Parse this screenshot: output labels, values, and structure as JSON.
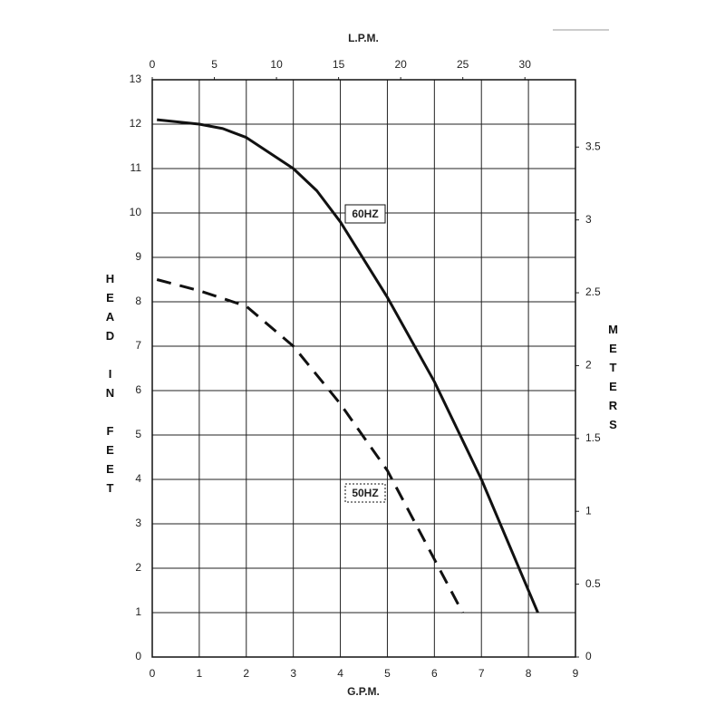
{
  "chart_data": {
    "type": "line",
    "xlabel": "G.P.M.",
    "ylabel": "HEAD IN FEET",
    "x2label": "L.P.M.",
    "y2label": "METERS",
    "xlim": [
      0,
      9
    ],
    "xticks": [
      0,
      1,
      2,
      3,
      4,
      5,
      6,
      7,
      8,
      9
    ],
    "ylim": [
      0,
      13
    ],
    "yticks": [
      0,
      1,
      2,
      3,
      4,
      5,
      6,
      7,
      8,
      9,
      10,
      11,
      12,
      13
    ],
    "x2lim": [
      0,
      34.07
    ],
    "x2ticks": [
      0,
      5,
      10,
      15,
      20,
      25,
      30
    ],
    "y2lim": [
      0,
      3.962
    ],
    "y2ticks": [
      0,
      0.5,
      1,
      1.5,
      2,
      2.5,
      3,
      3.5
    ],
    "grid": true,
    "series": [
      {
        "name": "60HZ",
        "color": "#111111",
        "dashed": false,
        "x": [
          0.1,
          1,
          1.5,
          2,
          3,
          3.5,
          4,
          5,
          6,
          7,
          8.2
        ],
        "values": [
          12.1,
          12.0,
          11.9,
          11.7,
          11.0,
          10.5,
          9.8,
          8.1,
          6.2,
          4.0,
          1.0
        ]
      },
      {
        "name": "50HZ",
        "color": "#111111",
        "dashed": true,
        "x": [
          0.1,
          1,
          2,
          3,
          4,
          5,
          6,
          6.6
        ],
        "values": [
          8.5,
          8.25,
          7.9,
          7.0,
          5.7,
          4.2,
          2.2,
          1.0
        ]
      }
    ]
  }
}
